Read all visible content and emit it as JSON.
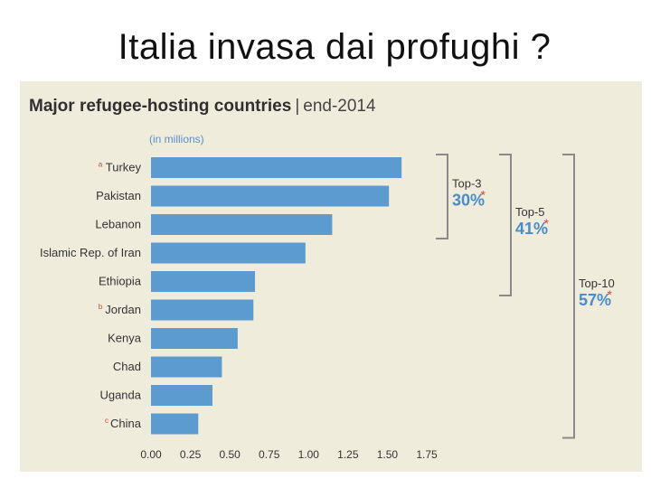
{
  "slide": {
    "title": "Italia invasa dai profughi ?"
  },
  "chart_data": {
    "type": "bar",
    "orientation": "horizontal",
    "title": "Major refugee-hosting countries",
    "subtitle": "end-2014",
    "unit_label": "(in millions)",
    "categories": [
      "Turkey",
      "Pakistan",
      "Lebanon",
      "Islamic Rep. of Iran",
      "Ethiopia",
      "Jordan",
      "Kenya",
      "Chad",
      "Uganda",
      "China"
    ],
    "notes": [
      "a",
      "",
      "",
      "",
      "",
      "b",
      "",
      "",
      "",
      "c"
    ],
    "values": [
      1.59,
      1.51,
      1.15,
      0.98,
      0.66,
      0.65,
      0.55,
      0.45,
      0.39,
      0.3
    ],
    "xlim": [
      0,
      1.75
    ],
    "xticks": [
      "0.00",
      "0.25",
      "0.50",
      "0.75",
      "1.00",
      "1.25",
      "1.50",
      "1.75"
    ],
    "grid": false,
    "groups": [
      {
        "name": "Top-3",
        "value": "30%",
        "star": "*",
        "first": 0,
        "last": 2
      },
      {
        "name": "Top-5",
        "value": "41%",
        "star": "*",
        "first": 0,
        "last": 4
      },
      {
        "name": "Top-10",
        "value": "57%",
        "star": "*",
        "first": 0,
        "last": 9
      }
    ],
    "colors": {
      "bar": "#5b9bd0",
      "accent": "#4a8bc9",
      "note": "#d0453a",
      "background": "#f0ecdc"
    }
  }
}
